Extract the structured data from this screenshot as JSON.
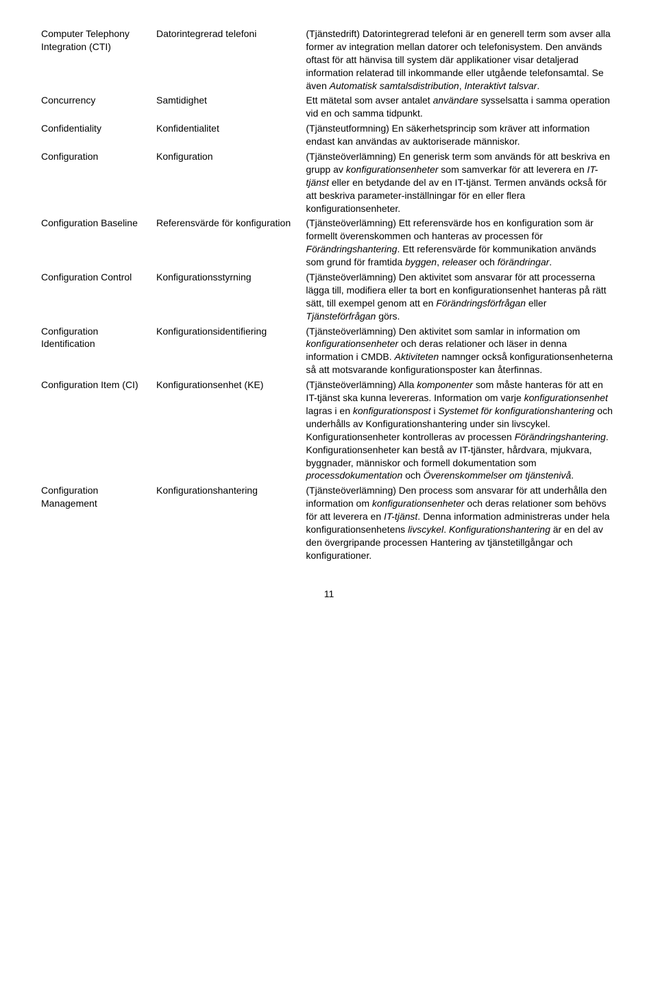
{
  "rows": [
    {
      "term_en": "Computer Telephony Integration (CTI)",
      "term_sv": "Datorintegrerad telefoni",
      "definition": "(Tjänstedrift) Datorintegrerad telefoni är en generell term som avser alla former av integration mellan datorer och telefonisystem. Den används oftast för att hänvisa till system där applikationer visar detaljerad information relaterad till inkommande eller utgående telefonsamtal. Se även <i>Automatisk samtalsdistribution</i>, <i>Interaktivt talsvar</i>."
    },
    {
      "term_en": "Concurrency",
      "term_sv": "Samtidighet",
      "definition": "Ett mätetal som avser antalet <i>användare</i> sysselsatta i samma operation vid en och samma tidpunkt."
    },
    {
      "term_en": "Confidentiality",
      "term_sv": "Konfidentialitet",
      "definition": "(Tjänsteutformning) En säkerhetsprincip som kräver att information endast kan användas av auktoriserade människor."
    },
    {
      "term_en": "Configuration",
      "term_sv": "Konfiguration",
      "definition": "(Tjänsteöverlämning) En generisk term som används för att beskriva en grupp av <i>konfigurationsenheter</i> som samverkar för att leverera en <i>IT-tjänst</i> eller en betydande del av en IT-tjänst. Termen används också för att beskriva parameter-inställningar för en eller flera konfigurationsenheter."
    },
    {
      "term_en": "Configuration Baseline",
      "term_sv": "Referensvärde för konfiguration",
      "definition": "(Tjänsteöverlämning) Ett referensvärde hos en konfiguration som är formellt överenskommen och hanteras av processen för <i>Förändringshantering</i>. Ett referensvärde för kommunikation används som grund för framtida <i>byggen</i>, <i>releaser</i> och <i>förändringar</i>."
    },
    {
      "term_en": "Configuration Control",
      "term_sv": "Konfigurationsstyrning",
      "definition": "(Tjänsteöverlämning) Den aktivitet som ansvarar för att processerna lägga till, modifiera eller ta bort en konfigurationsenhet hanteras på rätt sätt, till exempel genom att en <i>Förändringsförfrågan</i> eller <i>Tjänsteförfrågan</i> görs."
    },
    {
      "term_en": "Configuration Identification",
      "term_sv": "Konfigurationsidentifiering",
      "definition": "(Tjänsteöverlämning) Den aktivitet som samlar in information om <i>konfigurationsenheter</i> och deras relationer och läser in denna information i CMDB. <i>Aktiviteten</i> namnger också konfigurationsenheterna så att motsvarande konfigurationsposter kan återfinnas."
    },
    {
      "term_en": "Configuration Item (CI)",
      "term_sv": "Konfigurationsenhet (KE)",
      "definition": "(Tjänsteöverlämning) Alla <i>komponenter</i> som måste hanteras för att en IT-tjänst ska kunna levereras. Information om varje <i>konfigurationsenhet</i> lagras i en <i>konfigurationspost</i> i <i>Systemet för konfigurationshantering</i> och underhålls av Konfigurationshantering under sin livscykel. Konfigurationsenheter kontrolleras av processen <i>Förändringshantering</i>. Konfigurationsenheter kan bestå av IT-tjänster, hårdvara, mjukvara, byggnader, människor och formell dokumentation som <i>processdokumentation</i> och <i>Överenskommelser om tjänstenivå</i>."
    },
    {
      "term_en": "Configuration Management",
      "term_sv": "Konfigurationshantering",
      "definition": "(Tjänsteöverlämning) Den process som ansvarar för att underhålla den information om <i>konfigurationsenheter</i> och deras relationer som behövs för att leverera en <i>IT-tjänst</i>. Denna information administreras under hela konfigurationsenhetens <i>livscykel</i>. <i>Konfigurationshantering</i> är en del av den övergripande processen Hantering av tjänstetillgångar och konfigurationer."
    }
  ],
  "pageNumber": "11"
}
